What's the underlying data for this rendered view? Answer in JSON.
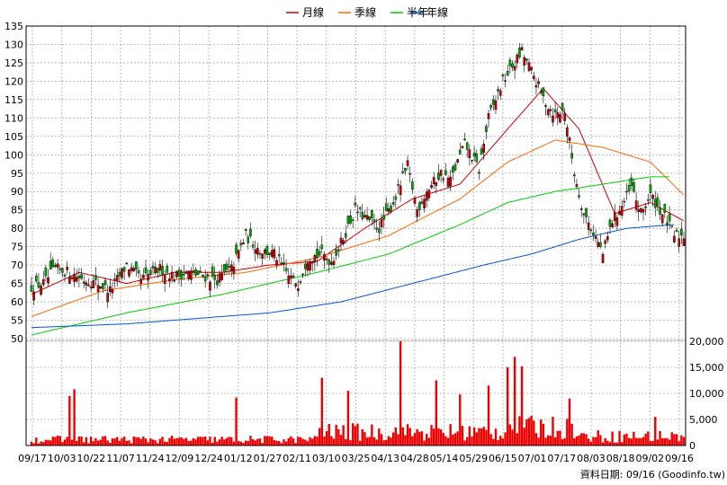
{
  "legend": [
    {
      "label": "月線",
      "color": "#cc0000"
    },
    {
      "label": "季線",
      "color": "#ff6600"
    },
    {
      "label": "半年",
      "color": "#00cc00"
    },
    {
      "label": "年線",
      "color": "#0055cc"
    }
  ],
  "source": "資料日期: 09/16  (Goodinfo.tw)",
  "chart_data": {
    "type": "candlestick",
    "x_labels": [
      "09/17",
      "10/03",
      "10/22",
      "11/07",
      "11/24",
      "12/09",
      "12/24",
      "01/12",
      "01/27",
      "02/11",
      "03/10",
      "03/25",
      "04/13",
      "04/28",
      "05/14",
      "05/29",
      "06/15",
      "07/01",
      "07/17",
      "08/03",
      "08/18",
      "09/02",
      "09/16"
    ],
    "price_axis": {
      "ticks": [
        50,
        55,
        60,
        65,
        70,
        75,
        80,
        85,
        90,
        95,
        100,
        105,
        110,
        115,
        120,
        125,
        130,
        135
      ],
      "range": [
        50,
        135
      ]
    },
    "volume_axis": {
      "ticks": [
        "0",
        "5,000",
        "10,000",
        "15,000",
        "20,000"
      ],
      "tick_values": [
        0,
        5000,
        10000,
        15000,
        20000
      ],
      "range": [
        0,
        20000
      ]
    },
    "price_anchors": [
      [
        0,
        64
      ],
      [
        5,
        65
      ],
      [
        10,
        69
      ],
      [
        16,
        68
      ],
      [
        22,
        66
      ],
      [
        28,
        65
      ],
      [
        33,
        63
      ],
      [
        40,
        70
      ],
      [
        46,
        66
      ],
      [
        54,
        69
      ],
      [
        60,
        67
      ],
      [
        66,
        68
      ],
      [
        72,
        67
      ],
      [
        78,
        66
      ],
      [
        84,
        69
      ],
      [
        90,
        78
      ],
      [
        96,
        74
      ],
      [
        102,
        73
      ],
      [
        108,
        67
      ],
      [
        112,
        65
      ],
      [
        116,
        72
      ],
      [
        122,
        73
      ],
      [
        126,
        71
      ],
      [
        130,
        76
      ],
      [
        136,
        85
      ],
      [
        142,
        82
      ],
      [
        146,
        80
      ],
      [
        152,
        87
      ],
      [
        158,
        97
      ],
      [
        162,
        85
      ],
      [
        166,
        90
      ],
      [
        172,
        95
      ],
      [
        176,
        93
      ],
      [
        182,
        103
      ],
      [
        188,
        96
      ],
      [
        192,
        110
      ],
      [
        198,
        120
      ],
      [
        202,
        124
      ],
      [
        206,
        128
      ],
      [
        212,
        120
      ],
      [
        216,
        114
      ],
      [
        220,
        111
      ],
      [
        224,
        112
      ],
      [
        228,
        95
      ],
      [
        232,
        84
      ],
      [
        236,
        79
      ],
      [
        240,
        73
      ],
      [
        244,
        82
      ],
      [
        248,
        86
      ],
      [
        252,
        91
      ],
      [
        256,
        84
      ],
      [
        260,
        89
      ],
      [
        264,
        85
      ],
      [
        266,
        83
      ],
      [
        270,
        78
      ],
      [
        274,
        78
      ]
    ],
    "ma": {
      "month": [
        [
          0,
          62
        ],
        [
          20,
          68
        ],
        [
          40,
          65
        ],
        [
          60,
          68
        ],
        [
          80,
          68
        ],
        [
          100,
          70
        ],
        [
          120,
          71
        ],
        [
          140,
          80
        ],
        [
          160,
          88
        ],
        [
          180,
          92
        ],
        [
          200,
          107
        ],
        [
          215,
          118
        ],
        [
          230,
          107
        ],
        [
          245,
          84
        ],
        [
          260,
          87
        ],
        [
          274,
          82
        ]
      ],
      "quarter": [
        [
          0,
          56
        ],
        [
          30,
          63
        ],
        [
          60,
          66
        ],
        [
          90,
          68
        ],
        [
          120,
          72
        ],
        [
          150,
          78
        ],
        [
          180,
          88
        ],
        [
          200,
          98
        ],
        [
          220,
          104
        ],
        [
          240,
          102
        ],
        [
          260,
          98
        ],
        [
          274,
          89
        ]
      ],
      "half_year": [
        [
          0,
          51
        ],
        [
          40,
          57
        ],
        [
          80,
          62
        ],
        [
          120,
          68
        ],
        [
          150,
          73
        ],
        [
          180,
          81
        ],
        [
          200,
          87
        ],
        [
          220,
          90
        ],
        [
          240,
          92
        ],
        [
          260,
          94
        ],
        [
          268,
          94
        ]
      ],
      "year": [
        [
          0,
          53
        ],
        [
          40,
          54
        ],
        [
          80,
          56
        ],
        [
          100,
          57
        ],
        [
          130,
          60
        ],
        [
          160,
          65
        ],
        [
          190,
          70
        ],
        [
          210,
          73
        ],
        [
          230,
          77
        ],
        [
          250,
          80
        ],
        [
          270,
          81
        ]
      ]
    },
    "volume_note": "daily volume bars, range 0-20,000, peak near 20,000 at 04/28"
  }
}
